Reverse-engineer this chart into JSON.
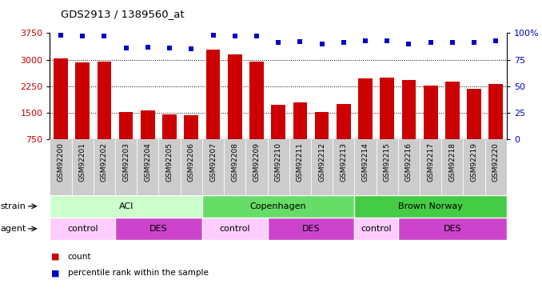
{
  "title": "GDS2913 / 1389560_at",
  "samples": [
    "GSM92200",
    "GSM92201",
    "GSM92202",
    "GSM92203",
    "GSM92204",
    "GSM92205",
    "GSM92206",
    "GSM92207",
    "GSM92208",
    "GSM92209",
    "GSM92210",
    "GSM92211",
    "GSM92212",
    "GSM92213",
    "GSM92214",
    "GSM92215",
    "GSM92216",
    "GSM92217",
    "GSM92218",
    "GSM92219",
    "GSM92220"
  ],
  "counts": [
    3040,
    2930,
    2940,
    1520,
    1580,
    1450,
    1430,
    3280,
    3150,
    2940,
    1720,
    1790,
    1530,
    1760,
    2480,
    2490,
    2430,
    2260,
    2380,
    2170,
    2310
  ],
  "percentile": [
    98,
    97,
    97,
    86,
    87,
    86,
    85,
    98,
    97,
    97,
    91,
    92,
    90,
    91,
    93,
    93,
    90,
    91,
    91,
    91,
    93
  ],
  "ylim_left": [
    750,
    3750
  ],
  "ylim_right": [
    0,
    100
  ],
  "yticks_left": [
    750,
    1500,
    2250,
    3000,
    3750
  ],
  "yticks_right": [
    0,
    25,
    50,
    75,
    100
  ],
  "bar_color": "#cc0000",
  "dot_color": "#0000cc",
  "xtick_bg": "#cccccc",
  "strain_groups": [
    {
      "label": "ACI",
      "start": 0,
      "end": 6,
      "color": "#ccffcc"
    },
    {
      "label": "Copenhagen",
      "start": 7,
      "end": 13,
      "color": "#66dd66"
    },
    {
      "label": "Brown Norway",
      "start": 14,
      "end": 20,
      "color": "#44cc44"
    }
  ],
  "agent_groups": [
    {
      "label": "control",
      "start": 0,
      "end": 2,
      "color": "#ffccff"
    },
    {
      "label": "DES",
      "start": 3,
      "end": 6,
      "color": "#cc44cc"
    },
    {
      "label": "control",
      "start": 7,
      "end": 9,
      "color": "#ffccff"
    },
    {
      "label": "DES",
      "start": 10,
      "end": 13,
      "color": "#cc44cc"
    },
    {
      "label": "control",
      "start": 14,
      "end": 15,
      "color": "#ffccff"
    },
    {
      "label": "DES",
      "start": 16,
      "end": 20,
      "color": "#cc44cc"
    }
  ],
  "bg_color": "#ffffff",
  "tick_label_color_left": "#cc0000",
  "tick_label_color_right": "#0000cc",
  "strain_label": "strain",
  "agent_label": "agent",
  "legend_count_label": "count",
  "legend_dot_label": "percentile rank within the sample",
  "gridlines": [
    1500,
    2250,
    3000
  ]
}
